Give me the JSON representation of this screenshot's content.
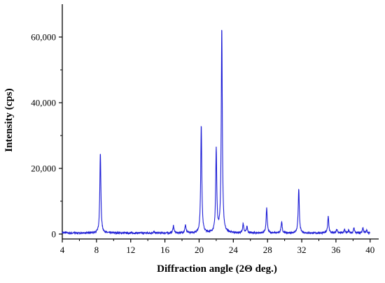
{
  "chart_data": {
    "type": "line",
    "title": "",
    "xlabel": "Diffraction angle (2Θ deg.)",
    "ylabel": "Intensity (cps)",
    "xlim": [
      4,
      41
    ],
    "ylim": [
      -1500,
      70000
    ],
    "x_ticks": [
      4,
      8,
      12,
      16,
      20,
      24,
      28,
      32,
      36,
      40
    ],
    "x_tick_labels": [
      "4",
      "8",
      "12",
      "16",
      "20",
      "24",
      "28",
      "32",
      "36",
      "40"
    ],
    "y_ticks": [
      0,
      20000,
      40000,
      60000
    ],
    "y_tick_labels": [
      "0",
      "20,000",
      "40,000",
      "60,000"
    ],
    "grid": false,
    "line_color": "#1f1fd6",
    "baseline": 300,
    "peaks": [
      {
        "x": 8.45,
        "y": 24500
      },
      {
        "x": 14.7,
        "y": 400
      },
      {
        "x": 17.0,
        "y": 2300
      },
      {
        "x": 18.4,
        "y": 2500
      },
      {
        "x": 20.25,
        "y": 33000
      },
      {
        "x": 22.0,
        "y": 25300
      },
      {
        "x": 22.65,
        "y": 62500
      },
      {
        "x": 25.15,
        "y": 2800
      },
      {
        "x": 25.6,
        "y": 2000
      },
      {
        "x": 27.9,
        "y": 7600
      },
      {
        "x": 29.65,
        "y": 3500
      },
      {
        "x": 31.65,
        "y": 13700
      },
      {
        "x": 35.1,
        "y": 5200
      },
      {
        "x": 36.1,
        "y": 1100
      },
      {
        "x": 37.0,
        "y": 1000
      },
      {
        "x": 37.5,
        "y": 800
      },
      {
        "x": 38.1,
        "y": 1500
      },
      {
        "x": 39.15,
        "y": 1600
      },
      {
        "x": 39.6,
        "y": 800
      }
    ]
  }
}
